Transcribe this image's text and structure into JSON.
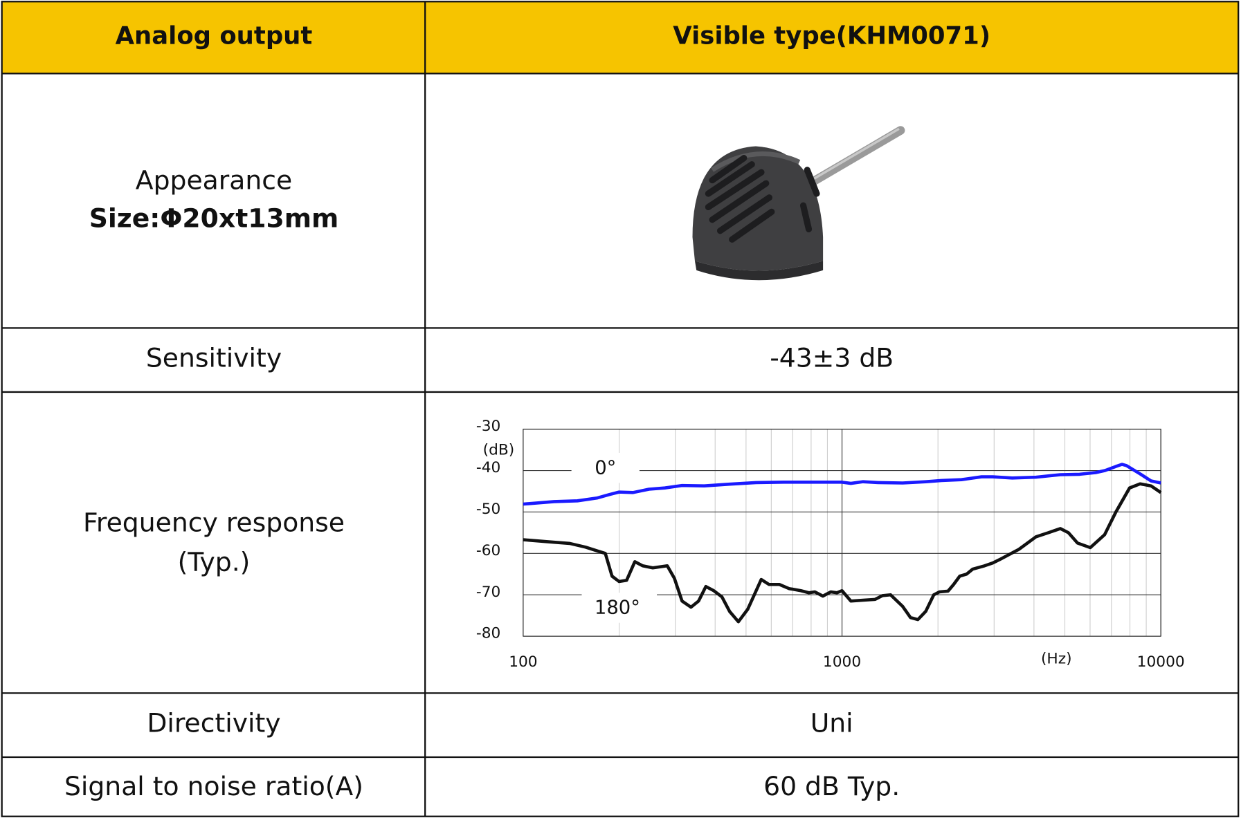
{
  "table": {
    "header": {
      "label": "Analog output",
      "value": "Visible type(KHM0071)"
    },
    "rows": [
      {
        "label": [
          "Appearance",
          "Size:Φ20xt13mm"
        ]
      },
      {
        "label": "Sensitivity",
        "value": "-43±3 dB"
      },
      {
        "label": [
          "Frequency response",
          "(Typ.)"
        ]
      },
      {
        "label": "Directivity",
        "value": "Uni"
      },
      {
        "label": "Signal to noise ratio(A)",
        "value": "60 dB Typ."
      }
    ]
  },
  "chart_data": {
    "type": "line",
    "x_label": "(Hz)",
    "y_label": "(dB)",
    "log_x": true,
    "xlim": [
      100,
      10000
    ],
    "xticks": [
      100,
      1000,
      10000
    ],
    "ylim": [
      -80,
      -30
    ],
    "yticks": [
      -30,
      -40,
      -50,
      -60,
      -70,
      -80
    ],
    "grid": true,
    "minor_grid": true,
    "series": [
      {
        "name": "0°",
        "color": "#1a1aff",
        "x": [
          100,
          125,
          148,
          171,
          186,
          200,
          221,
          248,
          278,
          315,
          370,
          440,
          537,
          655,
          822,
          1000,
          1066,
          1165,
          1300,
          1550,
          1830,
          2050,
          2370,
          2740,
          2970,
          3420,
          4060,
          4840,
          5560,
          6240,
          6680,
          7230,
          7560,
          7800,
          8610,
          9320,
          10000
        ],
        "values": [
          -48.1,
          -47.5,
          -47.3,
          -46.6,
          -45.8,
          -45.2,
          -45.3,
          -44.5,
          -44.2,
          -43.6,
          -43.7,
          -43.3,
          -42.9,
          -42.8,
          -42.8,
          -42.8,
          -43.1,
          -42.7,
          -42.9,
          -43,
          -42.7,
          -42.4,
          -42.2,
          -41.5,
          -41.5,
          -41.8,
          -41.6,
          -41,
          -40.9,
          -40.5,
          -40,
          -39,
          -38.5,
          -38.8,
          -40.8,
          -42.5,
          -43
        ]
      },
      {
        "name": "180°",
        "color": "#111111",
        "x": [
          100,
          125,
          140,
          157,
          171,
          181,
          190,
          200,
          211,
          224,
          237,
          255,
          283,
          298,
          315,
          336,
          355,
          374,
          396,
          420,
          444,
          473,
          506,
          558,
          590,
          636,
          682,
          743,
          787,
          822,
          871,
          922,
          964,
          1000,
          1066,
          1165,
          1270,
          1340,
          1420,
          1550,
          1640,
          1730,
          1830,
          1940,
          2020,
          2150,
          2240,
          2340,
          2460,
          2570,
          2800,
          2970,
          3120,
          3590,
          4060,
          4440,
          4840,
          5130,
          5480,
          6010,
          6660,
          7230,
          7980,
          8610,
          9320,
          10000
        ],
        "values": [
          -56.7,
          -57.3,
          -57.6,
          -58.5,
          -59.4,
          -60,
          -65.5,
          -66.8,
          -66.5,
          -62,
          -63,
          -63.5,
          -63,
          -66,
          -71.5,
          -73,
          -71.5,
          -68,
          -69,
          -70.5,
          -74,
          -76.5,
          -73.5,
          -66.3,
          -67.5,
          -67.5,
          -68.5,
          -69,
          -69.5,
          -69.3,
          -70.3,
          -69.3,
          -69.5,
          -69,
          -71.5,
          -71.3,
          -71.1,
          -70.2,
          -70,
          -72.8,
          -75.5,
          -76,
          -74,
          -70,
          -69.3,
          -69.1,
          -67.5,
          -65.5,
          -65,
          -63.8,
          -63,
          -62.3,
          -61.5,
          -59,
          -56,
          -55,
          -54,
          -55,
          -57.5,
          -58.6,
          -55.5,
          -50,
          -44.2,
          -43.2,
          -43.7,
          -45.3
        ]
      }
    ]
  }
}
